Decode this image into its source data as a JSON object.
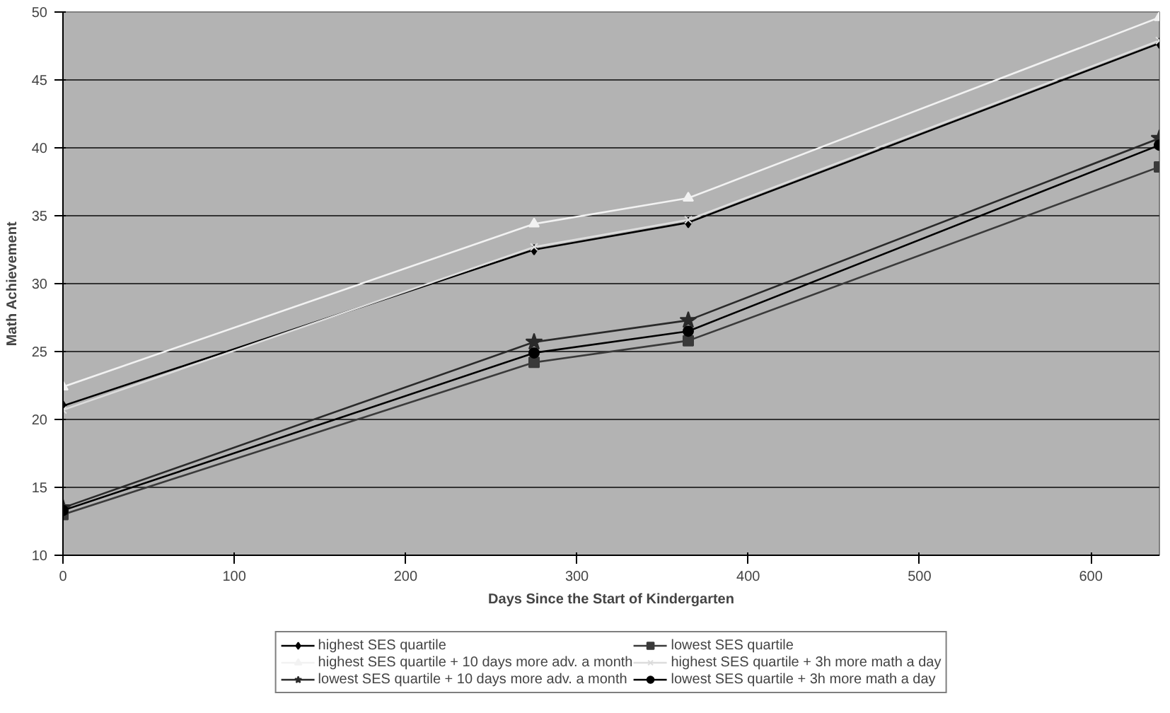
{
  "chart_data": {
    "type": "line",
    "xlabel": "Days Since the Start of Kindergarten",
    "ylabel": "Math Achievement",
    "xlim": [
      0,
      640
    ],
    "xticks": [
      0,
      100,
      200,
      300,
      400,
      500,
      600
    ],
    "ylim": [
      10,
      50
    ],
    "yticks": [
      10,
      15,
      20,
      25,
      30,
      35,
      40,
      45,
      50
    ],
    "grid": "y",
    "legend": "bottom",
    "x": [
      0,
      275,
      365,
      640
    ],
    "series": [
      {
        "name": "highest SES quartile",
        "color": "#000000",
        "marker": "diamond",
        "values": [
          21.0,
          32.5,
          34.5,
          47.7
        ]
      },
      {
        "name": "lowest SES quartile",
        "color": "#3a3a3a",
        "marker": "square",
        "values": [
          13.0,
          24.2,
          25.8,
          38.6
        ]
      },
      {
        "name": "highest SES quartile + 10 days more adv. a month",
        "color": "#f2f2f2",
        "marker": "triangle",
        "values": [
          22.4,
          34.4,
          36.3,
          49.6
        ]
      },
      {
        "name": "highest SES quartile + 3h more math a day",
        "color": "#dcdcdc",
        "marker": "cross",
        "values": [
          20.7,
          32.7,
          34.7,
          47.9
        ]
      },
      {
        "name": "lowest SES quartile + 10 days more adv. a month",
        "color": "#2a2a2a",
        "marker": "star",
        "values": [
          13.5,
          25.7,
          27.3,
          40.7
        ]
      },
      {
        "name": "lowest SES quartile + 3h more math a day",
        "color": "#000000",
        "marker": "circle",
        "values": [
          13.3,
          24.9,
          26.5,
          40.2
        ]
      }
    ]
  }
}
